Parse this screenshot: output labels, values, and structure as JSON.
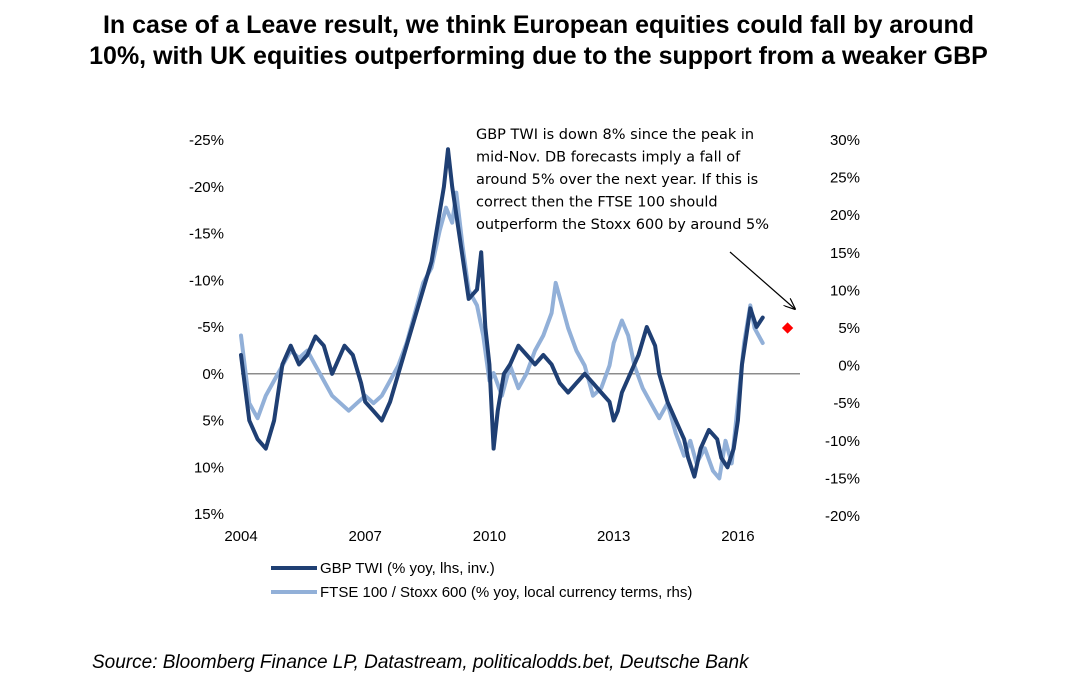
{
  "title": {
    "line1": "In case of a Leave result, we think European equities could fall by around",
    "line2": "10%, with UK equities outperforming due to the support from a weaker GBP"
  },
  "source": "Source: Bloomberg Finance LP, Datastream, politicalodds.bet, Deutsche Bank",
  "chart_data": {
    "type": "line",
    "x_tick_labels": [
      "2004",
      "2007",
      "2010",
      "2013",
      "2016"
    ],
    "x_ticks": [
      2004,
      2007,
      2010,
      2013,
      2016
    ],
    "xlim": [
      2004.0,
      2017.5
    ],
    "left_axis": {
      "inverted": true,
      "ylim": [
        -25,
        15
      ],
      "ticks": [
        -25,
        -20,
        -15,
        -10,
        -5,
        0,
        5,
        10,
        15
      ],
      "tick_labels": [
        "-25%",
        "-20%",
        "-15%",
        "-10%",
        "-5%",
        "0%",
        "5%",
        "10%",
        "15%"
      ]
    },
    "right_axis": {
      "ylim": [
        -20,
        30
      ],
      "ticks": [
        30,
        25,
        20,
        15,
        10,
        5,
        0,
        -5,
        -10,
        -15,
        -20
      ],
      "tick_labels": [
        "30%",
        "25%",
        "20%",
        "15%",
        "10%",
        "5%",
        "0%",
        "-5%",
        "-10%",
        "-15%",
        "-20%"
      ]
    },
    "zero_line": true,
    "series": [
      {
        "name": "GBP TWI (% yoy, lhs, inv.)",
        "axis": "left",
        "color": "#1f3f73",
        "points": [
          [
            2004.0,
            -2
          ],
          [
            2004.2,
            5
          ],
          [
            2004.4,
            7
          ],
          [
            2004.6,
            8
          ],
          [
            2004.8,
            5
          ],
          [
            2005.0,
            -1
          ],
          [
            2005.2,
            -3
          ],
          [
            2005.4,
            -1
          ],
          [
            2005.6,
            -2
          ],
          [
            2005.8,
            -4
          ],
          [
            2006.0,
            -3
          ],
          [
            2006.2,
            0
          ],
          [
            2006.4,
            -2
          ],
          [
            2006.5,
            -3
          ],
          [
            2006.7,
            -2
          ],
          [
            2006.9,
            1
          ],
          [
            2007.0,
            3
          ],
          [
            2007.2,
            4
          ],
          [
            2007.4,
            5
          ],
          [
            2007.6,
            3
          ],
          [
            2007.8,
            0
          ],
          [
            2008.0,
            -3
          ],
          [
            2008.2,
            -6
          ],
          [
            2008.4,
            -9
          ],
          [
            2008.6,
            -12
          ],
          [
            2008.75,
            -16
          ],
          [
            2008.9,
            -20
          ],
          [
            2009.0,
            -24
          ],
          [
            2009.1,
            -20
          ],
          [
            2009.3,
            -14
          ],
          [
            2009.5,
            -8
          ],
          [
            2009.7,
            -9
          ],
          [
            2009.8,
            -13
          ],
          [
            2009.9,
            -5
          ],
          [
            2010.0,
            -1
          ],
          [
            2010.1,
            8
          ],
          [
            2010.2,
            4
          ],
          [
            2010.35,
            0
          ],
          [
            2010.5,
            -1
          ],
          [
            2010.7,
            -3
          ],
          [
            2010.9,
            -2
          ],
          [
            2011.1,
            -1
          ],
          [
            2011.3,
            -2
          ],
          [
            2011.5,
            -1
          ],
          [
            2011.7,
            1
          ],
          [
            2011.9,
            2
          ],
          [
            2012.1,
            1
          ],
          [
            2012.3,
            0
          ],
          [
            2012.5,
            1
          ],
          [
            2012.7,
            2
          ],
          [
            2012.9,
            3
          ],
          [
            2013.0,
            5
          ],
          [
            2013.1,
            4
          ],
          [
            2013.2,
            2
          ],
          [
            2013.4,
            0
          ],
          [
            2013.6,
            -2
          ],
          [
            2013.8,
            -5
          ],
          [
            2014.0,
            -3
          ],
          [
            2014.1,
            0
          ],
          [
            2014.3,
            3
          ],
          [
            2014.5,
            5
          ],
          [
            2014.7,
            7
          ],
          [
            2014.8,
            9
          ],
          [
            2014.95,
            11
          ],
          [
            2015.1,
            8
          ],
          [
            2015.3,
            6
          ],
          [
            2015.5,
            7
          ],
          [
            2015.6,
            9
          ],
          [
            2015.75,
            10
          ],
          [
            2015.9,
            8
          ],
          [
            2016.0,
            5
          ],
          [
            2016.1,
            -1
          ],
          [
            2016.2,
            -4
          ],
          [
            2016.3,
            -7
          ],
          [
            2016.45,
            -5
          ],
          [
            2016.6,
            -6
          ]
        ]
      },
      {
        "name": "FTSE 100 / Stoxx 600 (% yoy, local currency terms, rhs)",
        "axis": "right",
        "color": "#92b0d8",
        "points": [
          [
            2004.0,
            4
          ],
          [
            2004.2,
            -5
          ],
          [
            2004.4,
            -7
          ],
          [
            2004.6,
            -4
          ],
          [
            2004.8,
            -2
          ],
          [
            2005.0,
            0
          ],
          [
            2005.2,
            2
          ],
          [
            2005.4,
            1
          ],
          [
            2005.6,
            2
          ],
          [
            2005.8,
            0
          ],
          [
            2006.0,
            -2
          ],
          [
            2006.2,
            -4
          ],
          [
            2006.4,
            -5
          ],
          [
            2006.6,
            -6
          ],
          [
            2006.8,
            -5
          ],
          [
            2007.0,
            -4
          ],
          [
            2007.2,
            -5
          ],
          [
            2007.4,
            -4
          ],
          [
            2007.6,
            -2
          ],
          [
            2007.8,
            0
          ],
          [
            2008.0,
            3
          ],
          [
            2008.2,
            7
          ],
          [
            2008.4,
            11
          ],
          [
            2008.6,
            13
          ],
          [
            2008.8,
            18
          ],
          [
            2008.95,
            21
          ],
          [
            2009.1,
            19
          ],
          [
            2009.2,
            23
          ],
          [
            2009.35,
            16
          ],
          [
            2009.5,
            10
          ],
          [
            2009.7,
            8
          ],
          [
            2009.85,
            4
          ],
          [
            2010.0,
            -2
          ],
          [
            2010.1,
            -1
          ],
          [
            2010.3,
            -4
          ],
          [
            2010.5,
            0
          ],
          [
            2010.7,
            -3
          ],
          [
            2010.9,
            -1
          ],
          [
            2011.1,
            2
          ],
          [
            2011.3,
            4
          ],
          [
            2011.5,
            7
          ],
          [
            2011.6,
            11
          ],
          [
            2011.75,
            8
          ],
          [
            2011.9,
            5
          ],
          [
            2012.1,
            2
          ],
          [
            2012.3,
            0
          ],
          [
            2012.5,
            -4
          ],
          [
            2012.7,
            -3
          ],
          [
            2012.9,
            0
          ],
          [
            2013.0,
            3
          ],
          [
            2013.2,
            6
          ],
          [
            2013.35,
            4
          ],
          [
            2013.5,
            0
          ],
          [
            2013.7,
            -3
          ],
          [
            2013.9,
            -5
          ],
          [
            2014.1,
            -7
          ],
          [
            2014.3,
            -5
          ],
          [
            2014.5,
            -9
          ],
          [
            2014.7,
            -12
          ],
          [
            2014.85,
            -10
          ],
          [
            2015.0,
            -13
          ],
          [
            2015.2,
            -11
          ],
          [
            2015.4,
            -14
          ],
          [
            2015.55,
            -15
          ],
          [
            2015.7,
            -10
          ],
          [
            2015.85,
            -13
          ],
          [
            2016.0,
            -5
          ],
          [
            2016.15,
            3
          ],
          [
            2016.3,
            8
          ],
          [
            2016.4,
            5
          ],
          [
            2016.6,
            3
          ]
        ]
      }
    ],
    "forecast_marker": {
      "x": 2017.2,
      "y": 5,
      "axis": "right",
      "color": "#ff0000"
    },
    "annotation": {
      "lines": [
        "GBP TWI is down 8% since the peak in",
        "mid-Nov. DB forecasts imply a fall of",
        "around 5% over the next year. If this is",
        "correct then the FTSE 100 should",
        "outperform the Stoxx 600 by around 5%"
      ]
    },
    "legend": {
      "placement": "bottom-left",
      "entries": [
        "GBP TWI (% yoy, lhs, inv.)",
        "FTSE 100 / Stoxx 600 (% yoy, local currency terms, rhs)"
      ]
    }
  }
}
